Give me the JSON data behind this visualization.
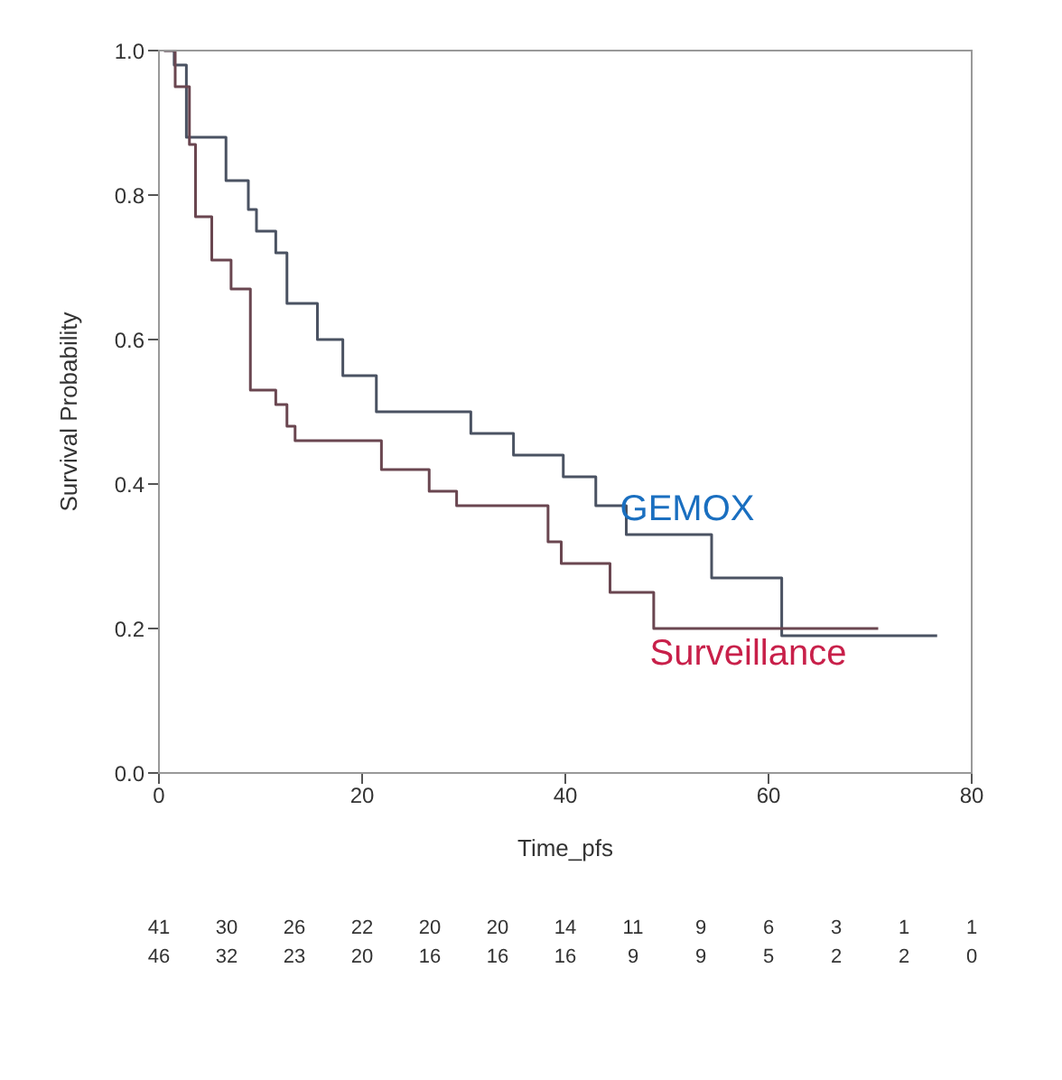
{
  "chart_data": {
    "type": "step",
    "xlabel": "Time_pfs",
    "ylabel": "Survival Probability",
    "xlim": [
      0,
      80
    ],
    "xticks": [
      0,
      20,
      40,
      60,
      80
    ],
    "ylim": [
      0,
      1
    ],
    "yticks": [
      {
        "value": 0,
        "label": "0.0"
      },
      {
        "value": 0.2,
        "label": "0.2"
      },
      {
        "value": 0.4,
        "label": "0.4"
      },
      {
        "value": 0.6,
        "label": "0.6"
      },
      {
        "value": 0.8,
        "label": "0.8"
      },
      {
        "value": 1,
        "label": "1.0"
      }
    ],
    "series": [
      {
        "name": "GEMOX",
        "color": "#4a5262",
        "x": [
          0.5,
          1.5,
          2.7,
          6.6,
          8.8,
          9.6,
          11.5,
          12.6,
          15.6,
          18.1,
          21.4,
          30.7,
          34.9,
          39.8,
          43,
          46,
          54.4,
          61.3,
          76.6
        ],
        "values": [
          1,
          0.98,
          0.88,
          0.82,
          0.78,
          0.75,
          0.72,
          0.65,
          0.6,
          0.55,
          0.5,
          0.47,
          0.44,
          0.41,
          0.37,
          0.33,
          0.27,
          0.19,
          0.19
        ]
      },
      {
        "name": "Surveillance",
        "color": "#6a4650",
        "x": [
          0.5,
          1.6,
          3,
          3.6,
          5.2,
          7.1,
          9,
          11.5,
          12.6,
          13.4,
          21.9,
          26.6,
          29.3,
          38.3,
          39.6,
          44.4,
          48.7,
          70.8
        ],
        "values": [
          1,
          0.95,
          0.87,
          0.77,
          0.71,
          0.67,
          0.53,
          0.51,
          0.48,
          0.46,
          0.42,
          0.39,
          0.37,
          0.32,
          0.29,
          0.25,
          0.2,
          0.2
        ]
      }
    ],
    "annotations": [
      "41 30 26 22 20 20 14 11 9 6 3 1 1",
      "46 32 23 20 16 16 16 9 9 5 2 2 0"
    ]
  }
}
